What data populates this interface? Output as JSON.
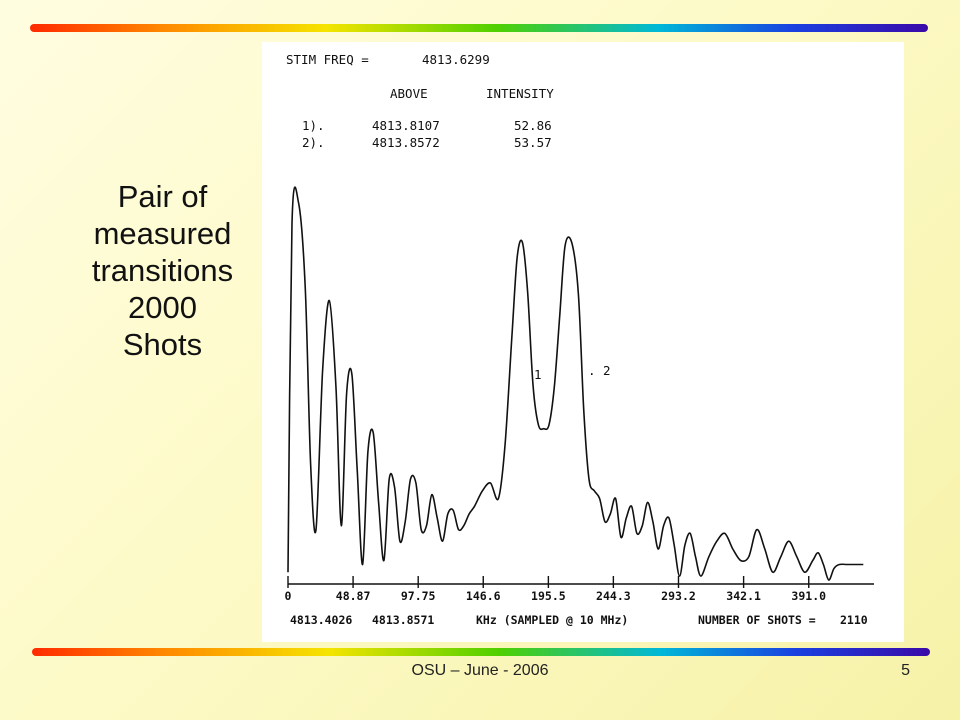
{
  "slide": {
    "title": "Pair of\nmeasured\ntransitions\n2000\nShots",
    "footer": "OSU – June - 2006",
    "number": "5"
  },
  "scan": {
    "stim_freq_label": "STIM FREQ =",
    "stim_freq_value": "4813.6299",
    "col_above": "ABOVE",
    "col_intensity": "INTENSITY",
    "rows": [
      {
        "idx": "1).",
        "freq": "4813.8107",
        "intensity": "52.86"
      },
      {
        "idx": "2).",
        "freq": "4813.8572",
        "intensity": "53.57"
      }
    ],
    "peak_markers": [
      "1",
      ". 2"
    ],
    "freq_start": "4813.4026",
    "freq_second": "4813.8571",
    "xaxis_label": "KHz (SAMPLED @ 10 MHz)",
    "shots_label": "NUMBER OF SHOTS =",
    "shots_value": "2110"
  },
  "chart_data": {
    "type": "line",
    "title": "",
    "xlabel": "KHz (SAMPLED @ 10 MHz)",
    "ylabel": "",
    "xlim": [
      0,
      440
    ],
    "ylim": [
      0,
      100
    ],
    "xticks": [
      "0",
      "48.87",
      "97.75",
      "146.6",
      "195.5",
      "244.3",
      "293.2",
      "342.1",
      "391.0"
    ],
    "xtick_values": [
      0,
      48.87,
      97.75,
      146.6,
      195.5,
      244.3,
      293.2,
      342.1,
      391.0
    ],
    "grid": false,
    "series": [
      {
        "color": "#111111",
        "x": [
          0,
          3,
          8,
          13,
          17,
          21,
          26,
          31,
          36,
          40,
          44,
          48,
          52,
          56,
          60,
          64,
          68,
          72,
          76,
          80,
          84,
          88,
          92,
          96,
          100,
          104,
          108,
          112,
          116,
          120,
          124,
          128,
          132,
          136,
          140,
          146,
          152,
          158,
          163,
          168,
          172,
          176,
          180,
          184,
          188,
          192,
          196,
          200,
          204,
          208,
          213,
          218,
          222,
          226,
          230,
          234,
          238,
          242,
          246,
          250,
          254,
          258,
          262,
          266,
          270,
          274,
          278,
          282,
          286,
          290,
          294,
          298,
          302,
          306,
          310,
          316,
          322,
          328,
          334,
          340,
          346,
          352,
          358,
          364,
          370,
          376,
          382,
          388,
          394,
          398,
          402,
          406,
          410,
          414,
          420,
          426,
          432
        ],
        "y": [
          2,
          92,
          97,
          75,
          30,
          13,
          54,
          72,
          50,
          14,
          48,
          53,
          28,
          4,
          33,
          38,
          20,
          5,
          26,
          24,
          10,
          15,
          26,
          25,
          13,
          14,
          22,
          16,
          10,
          17,
          18,
          13,
          14,
          17,
          19,
          23,
          25,
          21,
          35,
          62,
          83,
          87,
          74,
          50,
          40,
          39,
          40,
          50,
          68,
          86,
          87,
          74,
          44,
          26,
          23,
          21,
          15,
          17,
          21,
          11,
          16,
          19,
          12,
          14,
          20,
          15,
          8,
          14,
          16,
          9,
          1,
          9,
          12,
          6,
          1,
          6,
          10,
          12,
          8,
          5,
          6,
          13,
          8,
          2,
          6,
          10,
          6,
          2,
          5,
          7,
          4,
          0,
          3,
          4,
          4,
          4,
          4
        ]
      }
    ],
    "annotations": [
      "1",
      ". 2"
    ]
  }
}
